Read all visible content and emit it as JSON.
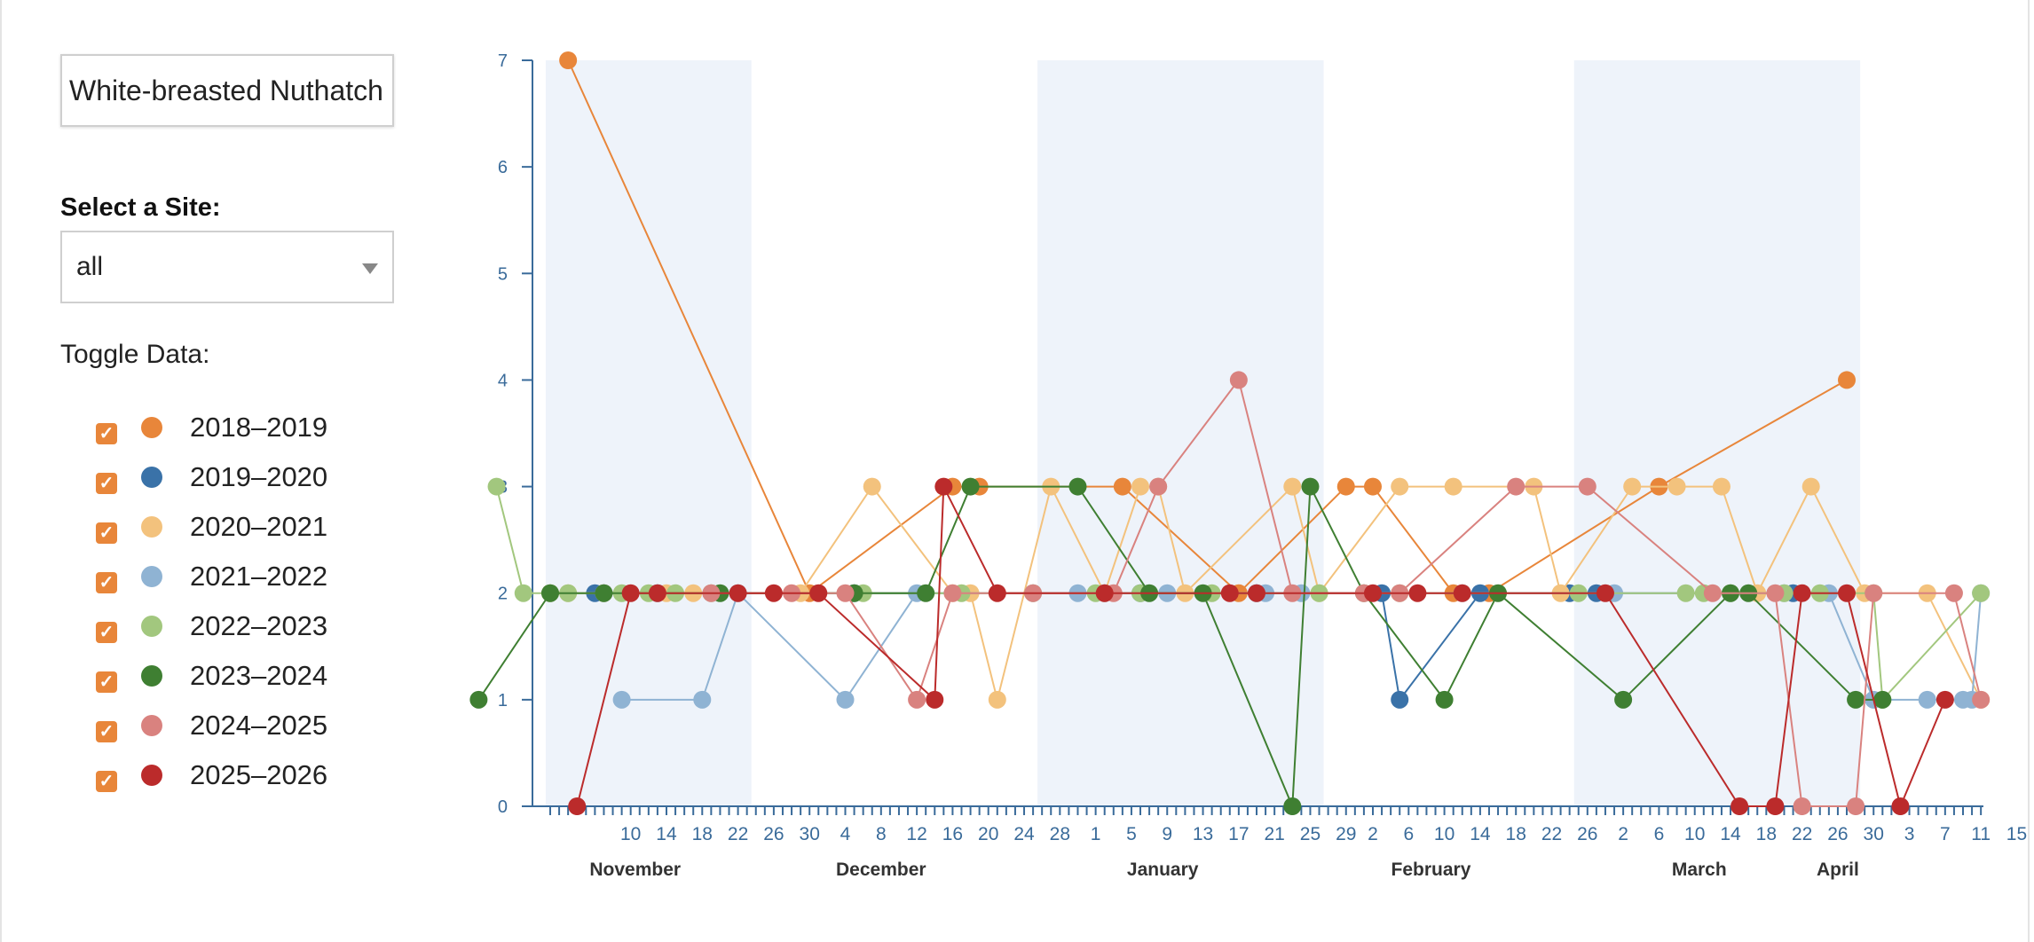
{
  "controls": {
    "species": "White-breasted Nuthatch",
    "site_label": "Select a Site:",
    "site_value": "all",
    "toggle_label": "Toggle Data:"
  },
  "legend": [
    {
      "label": "2018–2019",
      "color": "#e8863a",
      "checked": true
    },
    {
      "label": "2019–2020",
      "color": "#3a72a8",
      "checked": true
    },
    {
      "label": "2020–2021",
      "color": "#f3c27d",
      "checked": true
    },
    {
      "label": "2021–2022",
      "color": "#8fb3d3",
      "checked": true
    },
    {
      "label": "2022–2023",
      "color": "#a2c77e",
      "checked": true
    },
    {
      "label": "2023–2024",
      "color": "#3f7f32",
      "checked": true
    },
    {
      "label": "2024–2025",
      "color": "#d9827f",
      "checked": true
    },
    {
      "label": "2025–2026",
      "color": "#bb2b2b",
      "checked": true
    }
  ],
  "chart_data": {
    "type": "line",
    "x_unit": "day of season (Nov 1 = 1)",
    "y_ticks": [
      0,
      1,
      2,
      3,
      4,
      5,
      6,
      7
    ],
    "ylim": [
      0,
      7
    ],
    "x_tick_labels": [
      {
        "x": 10,
        "label": "10"
      },
      {
        "x": 14,
        "label": "14"
      },
      {
        "x": 18,
        "label": "18"
      },
      {
        "x": 22,
        "label": "22"
      },
      {
        "x": 26,
        "label": "26"
      },
      {
        "x": 30,
        "label": "30"
      },
      {
        "x": 34,
        "label": "4"
      },
      {
        "x": 38,
        "label": "8"
      },
      {
        "x": 42,
        "label": "12"
      },
      {
        "x": 46,
        "label": "16"
      },
      {
        "x": 50,
        "label": "20"
      },
      {
        "x": 54,
        "label": "24"
      },
      {
        "x": 58,
        "label": "28"
      },
      {
        "x": 62,
        "label": "1"
      },
      {
        "x": 66,
        "label": "5"
      },
      {
        "x": 70,
        "label": "9"
      },
      {
        "x": 74,
        "label": "13"
      },
      {
        "x": 78,
        "label": "17"
      },
      {
        "x": 82,
        "label": "21"
      },
      {
        "x": 86,
        "label": "25"
      },
      {
        "x": 90,
        "label": "29"
      },
      {
        "x": 93,
        "label": "2"
      },
      {
        "x": 97,
        "label": "6"
      },
      {
        "x": 101,
        "label": "10"
      },
      {
        "x": 105,
        "label": "14"
      },
      {
        "x": 109,
        "label": "18"
      },
      {
        "x": 113,
        "label": "22"
      },
      {
        "x": 117,
        "label": "26"
      },
      {
        "x": 121,
        "label": "2"
      },
      {
        "x": 125,
        "label": "6"
      },
      {
        "x": 129,
        "label": "10"
      },
      {
        "x": 133,
        "label": "14"
      },
      {
        "x": 137,
        "label": "18"
      },
      {
        "x": 141,
        "label": "22"
      },
      {
        "x": 145,
        "label": "26"
      },
      {
        "x": 149,
        "label": "30"
      },
      {
        "x": 153,
        "label": "3"
      },
      {
        "x": 157,
        "label": "7"
      },
      {
        "x": 161,
        "label": "11"
      },
      {
        "x": 165,
        "label": "15"
      }
    ],
    "month_labels": [
      {
        "x": 10.5,
        "label": "November"
      },
      {
        "x": 38,
        "label": "December"
      },
      {
        "x": 69.5,
        "label": "January"
      },
      {
        "x": 99.5,
        "label": "February"
      },
      {
        "x": 129.5,
        "label": "March"
      },
      {
        "x": 145,
        "label": "April"
      }
    ],
    "month_bands": [
      [
        1,
        23
      ],
      [
        56,
        87
      ],
      [
        116,
        147
      ]
    ],
    "series": [
      {
        "name": "2018–2019",
        "points": [
          [
            3,
            7
          ],
          [
            30,
            2
          ],
          [
            46,
            3
          ],
          [
            49,
            3
          ],
          [
            65,
            3
          ],
          [
            78,
            2
          ],
          [
            90,
            3
          ],
          [
            93,
            3
          ],
          [
            102,
            2
          ],
          [
            106,
            2
          ],
          [
            125,
            3
          ],
          [
            146,
            4
          ]
        ]
      },
      {
        "name": "2019–2020",
        "points": [
          [
            6,
            2
          ],
          [
            7,
            2
          ],
          [
            13,
            2
          ],
          [
            35,
            2
          ],
          [
            67,
            2
          ],
          [
            80,
            2
          ],
          [
            94,
            2
          ],
          [
            96,
            1
          ],
          [
            105,
            2
          ],
          [
            115,
            2
          ],
          [
            118,
            2
          ],
          [
            140,
            2
          ]
        ]
      },
      {
        "name": "2020–2021",
        "points": [
          [
            1,
            2
          ],
          [
            3,
            2
          ],
          [
            7,
            2
          ],
          [
            14,
            2
          ],
          [
            17,
            2
          ],
          [
            29,
            2
          ],
          [
            37,
            3
          ],
          [
            46,
            2
          ],
          [
            48,
            2
          ],
          [
            51,
            1
          ],
          [
            57,
            3
          ],
          [
            63,
            2
          ],
          [
            67,
            3
          ],
          [
            69,
            3
          ],
          [
            72,
            2
          ],
          [
            84,
            3
          ],
          [
            87,
            2
          ],
          [
            96,
            3
          ],
          [
            102,
            3
          ],
          [
            111,
            3
          ],
          [
            114,
            2
          ],
          [
            122,
            3
          ],
          [
            127,
            3
          ],
          [
            132,
            3
          ],
          [
            136,
            2
          ],
          [
            142,
            3
          ],
          [
            148,
            2
          ],
          [
            155,
            2
          ],
          [
            161,
            1
          ]
        ]
      },
      {
        "name": "2021–2022",
        "points": [
          [
            9,
            1
          ],
          [
            18,
            1
          ],
          [
            22,
            2
          ],
          [
            34,
            1
          ],
          [
            42,
            2
          ],
          [
            55,
            2
          ],
          [
            60,
            2
          ],
          [
            63,
            2
          ],
          [
            70,
            2
          ],
          [
            81,
            2
          ],
          [
            85,
            2
          ],
          [
            103,
            2
          ],
          [
            120,
            2
          ],
          [
            139,
            2
          ],
          [
            144,
            2
          ],
          [
            149,
            1
          ],
          [
            155,
            1
          ],
          [
            159,
            1
          ],
          [
            160,
            1
          ],
          [
            161,
            2
          ]
        ]
      },
      {
        "name": "2022–2023",
        "points": [
          [
            -5,
            3
          ],
          [
            -2,
            2
          ],
          [
            1,
            2
          ],
          [
            3,
            2
          ],
          [
            9,
            2
          ],
          [
            12,
            2
          ],
          [
            15,
            2
          ],
          [
            19,
            2
          ],
          [
            36,
            2
          ],
          [
            47,
            2
          ],
          [
            55,
            2
          ],
          [
            62,
            2
          ],
          [
            67,
            2
          ],
          [
            75,
            2
          ],
          [
            87,
            2
          ],
          [
            96,
            2
          ],
          [
            116,
            2
          ],
          [
            128,
            2
          ],
          [
            130,
            2
          ],
          [
            133,
            2
          ],
          [
            139,
            2
          ],
          [
            143,
            2
          ],
          [
            149,
            2
          ],
          [
            150,
            1
          ],
          [
            161,
            2
          ]
        ]
      },
      {
        "name": "2023–2024",
        "points": [
          [
            -7,
            1
          ],
          [
            1,
            2
          ],
          [
            7,
            2
          ],
          [
            20,
            2
          ],
          [
            35,
            2
          ],
          [
            43,
            2
          ],
          [
            48,
            3
          ],
          [
            60,
            3
          ],
          [
            68,
            2
          ],
          [
            74,
            2
          ],
          [
            84,
            0
          ],
          [
            86,
            3
          ],
          [
            92,
            2
          ],
          [
            101,
            1
          ],
          [
            107,
            2
          ],
          [
            121,
            1
          ],
          [
            133,
            2
          ],
          [
            135,
            2
          ],
          [
            147,
            1
          ],
          [
            150,
            1
          ]
        ]
      },
      {
        "name": "2024–2025",
        "points": [
          [
            19,
            2
          ],
          [
            28,
            2
          ],
          [
            34,
            2
          ],
          [
            42,
            1
          ],
          [
            46,
            2
          ],
          [
            55,
            2
          ],
          [
            64,
            2
          ],
          [
            69,
            3
          ],
          [
            78,
            4
          ],
          [
            84,
            2
          ],
          [
            92,
            2
          ],
          [
            96,
            2
          ],
          [
            109,
            3
          ],
          [
            117,
            3
          ],
          [
            131,
            2
          ],
          [
            138,
            2
          ],
          [
            141,
            0
          ],
          [
            147,
            0
          ],
          [
            149,
            2
          ],
          [
            158,
            2
          ],
          [
            161,
            1
          ]
        ]
      },
      {
        "name": "2025–2026",
        "points": [
          [
            4,
            0
          ],
          [
            10,
            2
          ],
          [
            13,
            2
          ],
          [
            22,
            2
          ],
          [
            26,
            2
          ],
          [
            31,
            2
          ],
          [
            44,
            1
          ],
          [
            45,
            3
          ],
          [
            51,
            2
          ],
          [
            63,
            2
          ],
          [
            77,
            2
          ],
          [
            80,
            2
          ],
          [
            93,
            2
          ],
          [
            98,
            2
          ],
          [
            103,
            2
          ],
          [
            119,
            2
          ],
          [
            134,
            0
          ],
          [
            138,
            0
          ],
          [
            141,
            2
          ],
          [
            146,
            2
          ],
          [
            152,
            0
          ],
          [
            157,
            1
          ]
        ]
      }
    ]
  }
}
